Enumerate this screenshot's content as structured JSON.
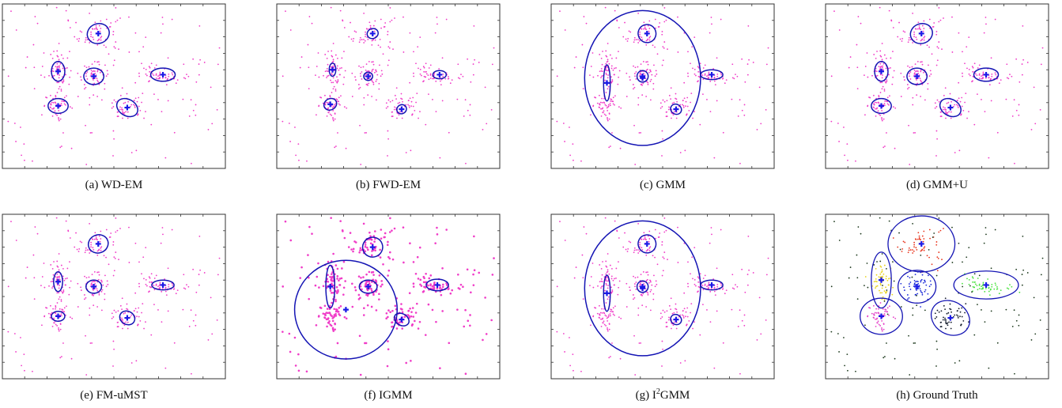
{
  "figure": {
    "panels": [
      {
        "caption_prefix": "(a) ",
        "caption_name": "WD-EM",
        "caption_sup": "",
        "caption_suffix": "",
        "style": "pink"
      },
      {
        "caption_prefix": "(b) ",
        "caption_name": "FWD-EM",
        "caption_sup": "",
        "caption_suffix": "",
        "style": "pink"
      },
      {
        "caption_prefix": "(c) ",
        "caption_name": "GMM",
        "caption_sup": "",
        "caption_suffix": "",
        "style": "pink"
      },
      {
        "caption_prefix": "(d) ",
        "caption_name": "GMM+U",
        "caption_sup": "",
        "caption_suffix": "",
        "style": "pink"
      },
      {
        "caption_prefix": "(e) ",
        "caption_name": "FM-uMST",
        "caption_sup": "",
        "caption_suffix": "",
        "style": "pink"
      },
      {
        "caption_prefix": "(f) ",
        "caption_name": "IGMM",
        "caption_sup": "",
        "caption_suffix": "",
        "style": "pink"
      },
      {
        "caption_prefix": "(g) ",
        "caption_name": "I",
        "caption_sup": "2",
        "caption_suffix": "GMM",
        "style": "pink"
      },
      {
        "caption_prefix": "(h) ",
        "caption_name": "Ground Truth",
        "caption_sup": "",
        "caption_suffix": "",
        "style": "colored"
      }
    ]
  },
  "chart_data": [
    {
      "type": "scatter",
      "title": "(a) WD-EM",
      "xlim": [
        0,
        1
      ],
      "ylim": [
        0,
        1
      ],
      "components": [
        {
          "cx": 0.43,
          "cy": 0.82,
          "rx": 0.05,
          "ry": 0.06,
          "angle": -20
        },
        {
          "cx": 0.25,
          "cy": 0.59,
          "rx": 0.03,
          "ry": 0.06,
          "angle": 0
        },
        {
          "cx": 0.41,
          "cy": 0.56,
          "rx": 0.045,
          "ry": 0.05,
          "angle": 0
        },
        {
          "cx": 0.25,
          "cy": 0.38,
          "rx": 0.045,
          "ry": 0.045,
          "angle": 0
        },
        {
          "cx": 0.56,
          "cy": 0.37,
          "rx": 0.05,
          "ry": 0.05,
          "angle": 30
        },
        {
          "cx": 0.72,
          "cy": 0.57,
          "rx": 0.055,
          "ry": 0.04,
          "angle": 0
        }
      ]
    },
    {
      "type": "scatter",
      "title": "(b) FWD-EM",
      "xlim": [
        0,
        1
      ],
      "ylim": [
        0,
        1
      ],
      "components": [
        {
          "cx": 0.43,
          "cy": 0.82,
          "rx": 0.025,
          "ry": 0.03,
          "angle": -20
        },
        {
          "cx": 0.25,
          "cy": 0.6,
          "rx": 0.015,
          "ry": 0.04,
          "angle": 0
        },
        {
          "cx": 0.41,
          "cy": 0.56,
          "rx": 0.02,
          "ry": 0.025,
          "angle": 0
        },
        {
          "cx": 0.24,
          "cy": 0.39,
          "rx": 0.025,
          "ry": 0.04,
          "angle": 60
        },
        {
          "cx": 0.56,
          "cy": 0.36,
          "rx": 0.02,
          "ry": 0.03,
          "angle": 60
        },
        {
          "cx": 0.73,
          "cy": 0.57,
          "rx": 0.03,
          "ry": 0.025,
          "angle": 0
        }
      ]
    },
    {
      "type": "scatter",
      "title": "(c) GMM",
      "xlim": [
        0,
        1
      ],
      "ylim": [
        0,
        1
      ],
      "components": [
        {
          "cx": 0.43,
          "cy": 0.82,
          "rx": 0.04,
          "ry": 0.055,
          "angle": -20
        },
        {
          "cx": 0.41,
          "cy": 0.55,
          "rx": 0.26,
          "ry": 0.41,
          "angle": 0
        },
        {
          "cx": 0.25,
          "cy": 0.52,
          "rx": 0.015,
          "ry": 0.11,
          "angle": 0
        },
        {
          "cx": 0.41,
          "cy": 0.56,
          "rx": 0.025,
          "ry": 0.035,
          "angle": 0
        },
        {
          "cx": 0.56,
          "cy": 0.36,
          "rx": 0.025,
          "ry": 0.03,
          "angle": 30
        },
        {
          "cx": 0.72,
          "cy": 0.57,
          "rx": 0.05,
          "ry": 0.03,
          "angle": 0
        }
      ]
    },
    {
      "type": "scatter",
      "title": "(d) GMM+U",
      "xlim": [
        0,
        1
      ],
      "ylim": [
        0,
        1
      ],
      "components": [
        {
          "cx": 0.43,
          "cy": 0.82,
          "rx": 0.05,
          "ry": 0.06,
          "angle": -20
        },
        {
          "cx": 0.25,
          "cy": 0.59,
          "rx": 0.03,
          "ry": 0.06,
          "angle": 0
        },
        {
          "cx": 0.41,
          "cy": 0.56,
          "rx": 0.045,
          "ry": 0.05,
          "angle": 0
        },
        {
          "cx": 0.25,
          "cy": 0.38,
          "rx": 0.045,
          "ry": 0.045,
          "angle": 0
        },
        {
          "cx": 0.56,
          "cy": 0.37,
          "rx": 0.05,
          "ry": 0.05,
          "angle": 30
        },
        {
          "cx": 0.72,
          "cy": 0.57,
          "rx": 0.055,
          "ry": 0.04,
          "angle": 0
        }
      ]
    },
    {
      "type": "scatter",
      "title": "(e) FM-uMST",
      "xlim": [
        0,
        1
      ],
      "ylim": [
        0,
        1
      ],
      "components": [
        {
          "cx": 0.43,
          "cy": 0.82,
          "rx": 0.045,
          "ry": 0.055,
          "angle": -20
        },
        {
          "cx": 0.25,
          "cy": 0.59,
          "rx": 0.02,
          "ry": 0.06,
          "angle": 0
        },
        {
          "cx": 0.41,
          "cy": 0.56,
          "rx": 0.035,
          "ry": 0.04,
          "angle": 0
        },
        {
          "cx": 0.25,
          "cy": 0.38,
          "rx": 0.03,
          "ry": 0.03,
          "angle": 0
        },
        {
          "cx": 0.56,
          "cy": 0.37,
          "rx": 0.035,
          "ry": 0.04,
          "angle": 30
        },
        {
          "cx": 0.72,
          "cy": 0.57,
          "rx": 0.05,
          "ry": 0.03,
          "angle": 0
        }
      ]
    },
    {
      "type": "scatter",
      "title": "(f) IGMM",
      "xlim": [
        0,
        1
      ],
      "ylim": [
        0,
        1
      ],
      "components": [
        {
          "cx": 0.43,
          "cy": 0.8,
          "rx": 0.045,
          "ry": 0.06,
          "angle": -20
        },
        {
          "cx": 0.31,
          "cy": 0.42,
          "rx": 0.23,
          "ry": 0.3,
          "angle": 0
        },
        {
          "cx": 0.24,
          "cy": 0.56,
          "rx": 0.02,
          "ry": 0.13,
          "angle": 0
        },
        {
          "cx": 0.41,
          "cy": 0.56,
          "rx": 0.04,
          "ry": 0.04,
          "angle": 0
        },
        {
          "cx": 0.56,
          "cy": 0.36,
          "rx": 0.035,
          "ry": 0.035,
          "angle": 30
        },
        {
          "cx": 0.72,
          "cy": 0.57,
          "rx": 0.05,
          "ry": 0.035,
          "angle": 0
        }
      ]
    },
    {
      "type": "scatter",
      "title": "(g) I2GMM",
      "xlim": [
        0,
        1
      ],
      "ylim": [
        0,
        1
      ],
      "components": [
        {
          "cx": 0.43,
          "cy": 0.82,
          "rx": 0.04,
          "ry": 0.055,
          "angle": -20
        },
        {
          "cx": 0.41,
          "cy": 0.55,
          "rx": 0.26,
          "ry": 0.41,
          "angle": 0
        },
        {
          "cx": 0.25,
          "cy": 0.52,
          "rx": 0.015,
          "ry": 0.11,
          "angle": 0
        },
        {
          "cx": 0.41,
          "cy": 0.56,
          "rx": 0.025,
          "ry": 0.035,
          "angle": 0
        },
        {
          "cx": 0.56,
          "cy": 0.36,
          "rx": 0.025,
          "ry": 0.03,
          "angle": 30
        },
        {
          "cx": 0.72,
          "cy": 0.57,
          "rx": 0.05,
          "ry": 0.03,
          "angle": 0
        }
      ]
    },
    {
      "type": "scatter",
      "title": "(h) Ground Truth",
      "xlim": [
        0,
        1
      ],
      "ylim": [
        0,
        1
      ],
      "components": [
        {
          "cx": 0.43,
          "cy": 0.82,
          "rx": 0.15,
          "ry": 0.17,
          "angle": 0,
          "color": "#e8341c"
        },
        {
          "cx": 0.25,
          "cy": 0.6,
          "rx": 0.045,
          "ry": 0.17,
          "angle": 0,
          "color": "#e8d21a"
        },
        {
          "cx": 0.41,
          "cy": 0.56,
          "rx": 0.085,
          "ry": 0.1,
          "angle": 0,
          "color": "#1c2bd8"
        },
        {
          "cx": 0.25,
          "cy": 0.38,
          "rx": 0.095,
          "ry": 0.11,
          "angle": 0,
          "color": "#e43fc8"
        },
        {
          "cx": 0.56,
          "cy": 0.37,
          "rx": 0.09,
          "ry": 0.1,
          "angle": 30,
          "color": "#101828"
        },
        {
          "cx": 0.72,
          "cy": 0.57,
          "rx": 0.145,
          "ry": 0.085,
          "angle": 0,
          "color": "#49e23d"
        }
      ]
    }
  ],
  "colors": {
    "point_pink": "#f03cc8",
    "ellipse_blue": "#1414b4",
    "center_blue": "#1a1ae6",
    "frame": "#333333",
    "noise_dark": "#1e3a1e"
  }
}
